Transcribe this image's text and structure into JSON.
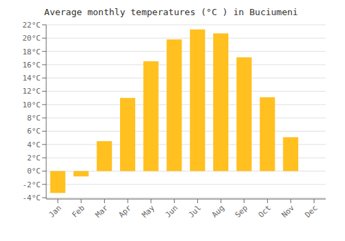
{
  "chart_data": {
    "type": "bar",
    "title": "Average monthly temperatures (°C ) in Buciumeni",
    "categories": [
      "Jan",
      "Feb",
      "Mar",
      "Apr",
      "May",
      "Jun",
      "Jul",
      "Aug",
      "Sep",
      "Oct",
      "Nov",
      "Dec"
    ],
    "values": [
      -3.3,
      -0.8,
      4.5,
      11.0,
      16.5,
      19.8,
      21.3,
      20.7,
      17.1,
      11.1,
      5.1,
      0.0
    ],
    "color": "#FFC020",
    "ylim": [
      -4.2,
      22
    ],
    "yticks": [
      {
        "value": -4,
        "label": "-4°C"
      },
      {
        "value": -2,
        "label": "-2°C"
      },
      {
        "value": 0,
        "label": "0°C"
      },
      {
        "value": 2,
        "label": "2°C"
      },
      {
        "value": 4,
        "label": "4°C"
      },
      {
        "value": 6,
        "label": "6°C"
      },
      {
        "value": 8,
        "label": "8°C"
      },
      {
        "value": 10,
        "label": "10°C"
      },
      {
        "value": 12,
        "label": "12°C"
      },
      {
        "value": 14,
        "label": "14°C"
      },
      {
        "value": 16,
        "label": "16°C"
      },
      {
        "value": 18,
        "label": "18°C"
      },
      {
        "value": 20,
        "label": "20°C"
      },
      {
        "value": 22,
        "label": "22°C"
      }
    ],
    "grid": true
  }
}
